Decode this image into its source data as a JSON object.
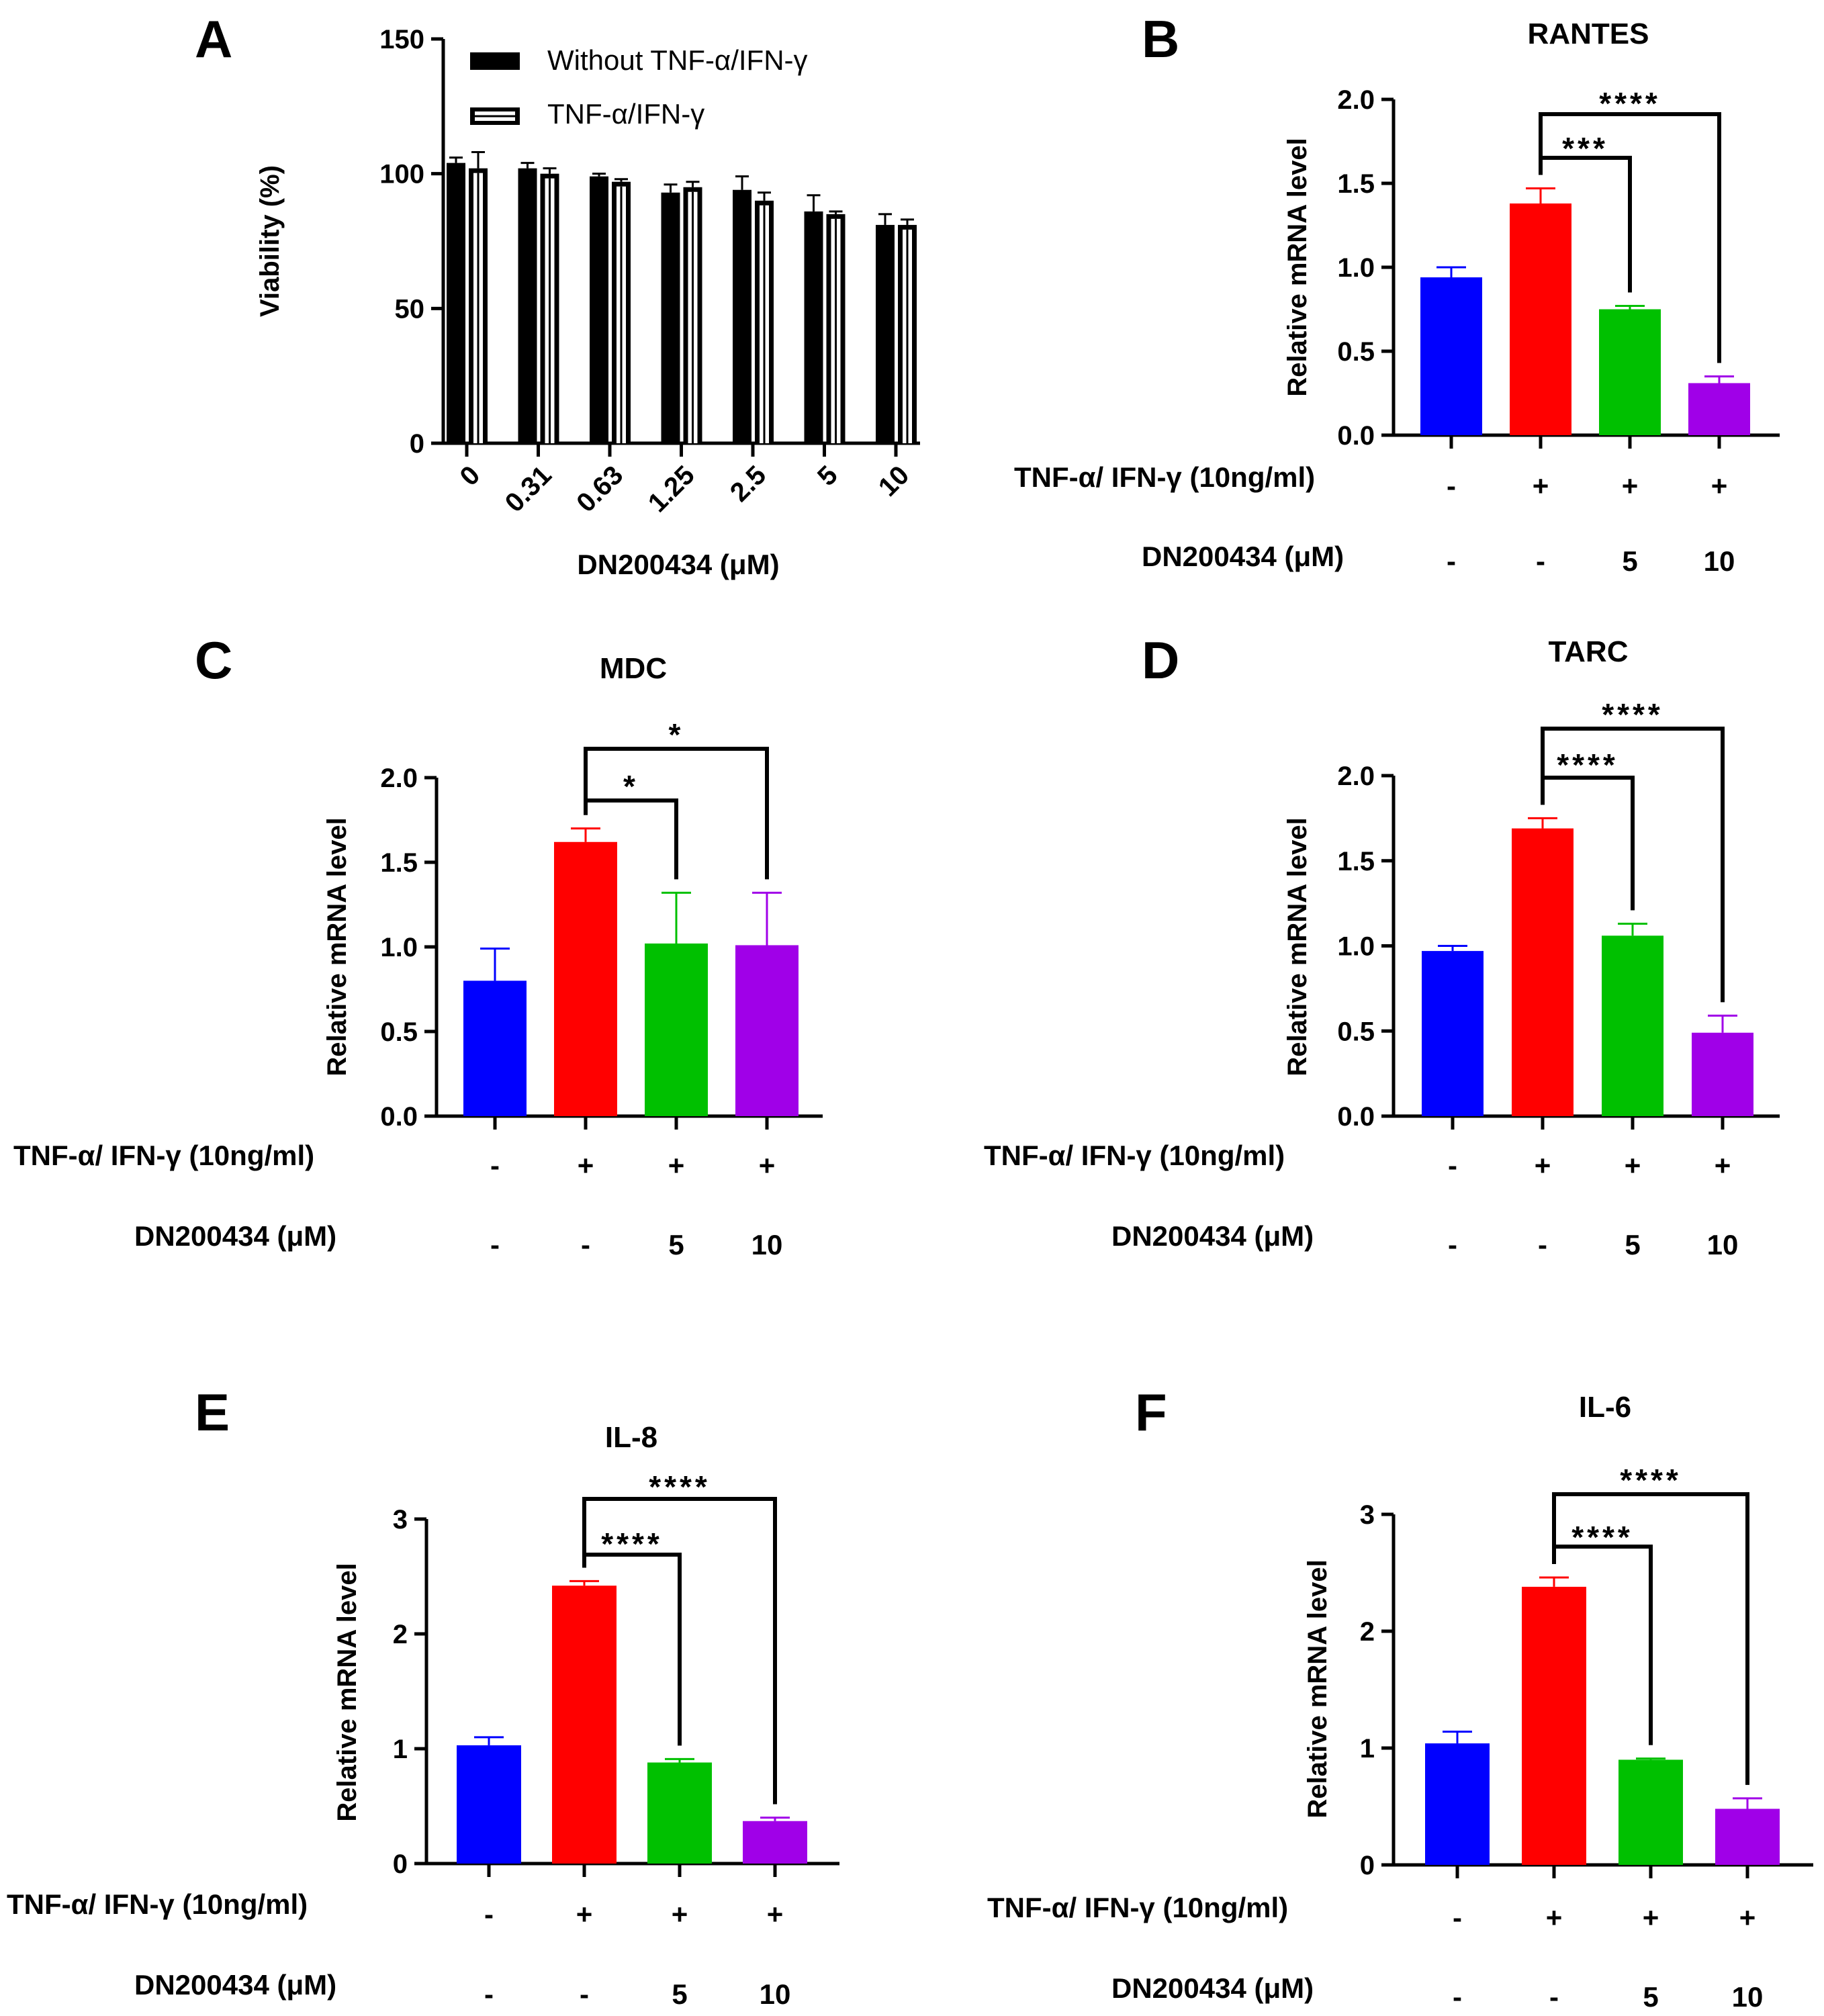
{
  "chart_data": [
    {
      "panel": "A",
      "type": "bar",
      "title": "",
      "xlabel": "DN200434 (μM)",
      "ylabel": "Viability (%)",
      "ylim": [
        0,
        150
      ],
      "yticks": [
        "0",
        "50",
        "100",
        "150"
      ],
      "categories": [
        "0",
        "0.31",
        "0.63",
        "1.25",
        "2.5",
        "5",
        "10"
      ],
      "series": [
        {
          "name": "Without TNF-α/IFN-γ",
          "color": "#000000",
          "values": [
            104,
            102,
            99,
            93,
            94,
            86,
            81
          ],
          "errors": [
            2,
            2,
            1,
            3,
            5,
            6,
            4
          ]
        },
        {
          "name": "TNF-α/IFN-γ",
          "color": "#000000",
          "values": [
            102,
            100,
            97,
            95,
            90,
            85,
            81
          ],
          "errors": [
            6,
            2,
            1,
            2,
            3,
            1,
            2
          ]
        }
      ]
    },
    {
      "panel": "B",
      "type": "bar",
      "title": "RANTES",
      "ylabel": "Relative mRNA level",
      "ylim": [
        0,
        2.0
      ],
      "yticks": [
        "0.0",
        "0.5",
        "1.0",
        "1.5",
        "2.0"
      ],
      "values": [
        0.94,
        1.38,
        0.75,
        0.31
      ],
      "errors": [
        0.06,
        0.09,
        0.02,
        0.04
      ],
      "colors": [
        "#0000ff",
        "#ff0000",
        "#00c000",
        "#a000e8"
      ],
      "tnf_row_label": "TNF-α/ IFN-γ (10ng/ml)",
      "tnf_row": [
        "-",
        "+",
        "+",
        "+"
      ],
      "dn_row_label": "DN200434 (μM)",
      "dn_row": [
        "-",
        "-",
        "5",
        "10"
      ],
      "significance": [
        {
          "from": 1,
          "to": 2,
          "label": "***"
        },
        {
          "from": 1,
          "to": 3,
          "label": "****"
        }
      ]
    },
    {
      "panel": "C",
      "type": "bar",
      "title": "MDC",
      "ylabel": "Relative mRNA level",
      "ylim": [
        0,
        2.0
      ],
      "yticks": [
        "0.0",
        "0.5",
        "1.0",
        "1.5",
        "2.0"
      ],
      "values": [
        0.8,
        1.62,
        1.02,
        1.01
      ],
      "errors": [
        0.19,
        0.08,
        0.3,
        0.31
      ],
      "colors": [
        "#0000ff",
        "#ff0000",
        "#00c000",
        "#a000e8"
      ],
      "tnf_row_label": "TNF-α/ IFN-γ (10ng/ml)",
      "tnf_row": [
        "-",
        "+",
        "+",
        "+"
      ],
      "dn_row_label": "DN200434 (μM)",
      "dn_row": [
        "-",
        "-",
        "5",
        "10"
      ],
      "significance": [
        {
          "from": 1,
          "to": 2,
          "label": "*"
        },
        {
          "from": 1,
          "to": 3,
          "label": "*"
        }
      ]
    },
    {
      "panel": "D",
      "type": "bar",
      "title": "TARC",
      "ylabel": "Relative mRNA level",
      "ylim": [
        0,
        2.0
      ],
      "yticks": [
        "0.0",
        "0.5",
        "1.0",
        "1.5",
        "2.0"
      ],
      "values": [
        0.97,
        1.69,
        1.06,
        0.49
      ],
      "errors": [
        0.03,
        0.06,
        0.07,
        0.1
      ],
      "colors": [
        "#0000ff",
        "#ff0000",
        "#00c000",
        "#a000e8"
      ],
      "tnf_row_label": "TNF-α/ IFN-γ (10ng/ml)",
      "tnf_row": [
        "-",
        "+",
        "+",
        "+"
      ],
      "dn_row_label": "DN200434 (μM)",
      "dn_row": [
        "-",
        "-",
        "5",
        "10"
      ],
      "significance": [
        {
          "from": 1,
          "to": 2,
          "label": "****"
        },
        {
          "from": 1,
          "to": 3,
          "label": "****"
        }
      ]
    },
    {
      "panel": "E",
      "type": "bar",
      "title": "IL-8",
      "ylabel": "Relative mRNA level",
      "ylim": [
        0,
        3
      ],
      "yticks": [
        "0",
        "1",
        "2",
        "3"
      ],
      "values": [
        1.03,
        2.42,
        0.88,
        0.37
      ],
      "errors": [
        0.07,
        0.04,
        0.03,
        0.03
      ],
      "colors": [
        "#0000ff",
        "#ff0000",
        "#00c000",
        "#a000e8"
      ],
      "tnf_row_label": "TNF-α/ IFN-γ (10ng/ml)",
      "tnf_row": [
        "-",
        "+",
        "+",
        "+"
      ],
      "dn_row_label": "DN200434 (μM)",
      "dn_row": [
        "-",
        "-",
        "5",
        "10"
      ],
      "significance": [
        {
          "from": 1,
          "to": 2,
          "label": "****"
        },
        {
          "from": 1,
          "to": 3,
          "label": "****"
        }
      ]
    },
    {
      "panel": "F",
      "type": "bar",
      "title": "IL-6",
      "ylabel": "Relative mRNA level",
      "ylim": [
        0,
        3
      ],
      "yticks": [
        "0",
        "1",
        "2",
        "3"
      ],
      "values": [
        1.04,
        2.38,
        0.9,
        0.48
      ],
      "errors": [
        0.1,
        0.08,
        0.01,
        0.09
      ],
      "colors": [
        "#0000ff",
        "#ff0000",
        "#00c000",
        "#a000e8"
      ],
      "tnf_row_label": "TNF-α/ IFN-γ (10ng/ml)",
      "tnf_row": [
        "-",
        "+",
        "+",
        "+"
      ],
      "dn_row_label": "DN200434 (μM)",
      "dn_row": [
        "-",
        "-",
        "5",
        "10"
      ],
      "significance": [
        {
          "from": 1,
          "to": 2,
          "label": "****"
        },
        {
          "from": 1,
          "to": 3,
          "label": "****"
        }
      ]
    }
  ]
}
